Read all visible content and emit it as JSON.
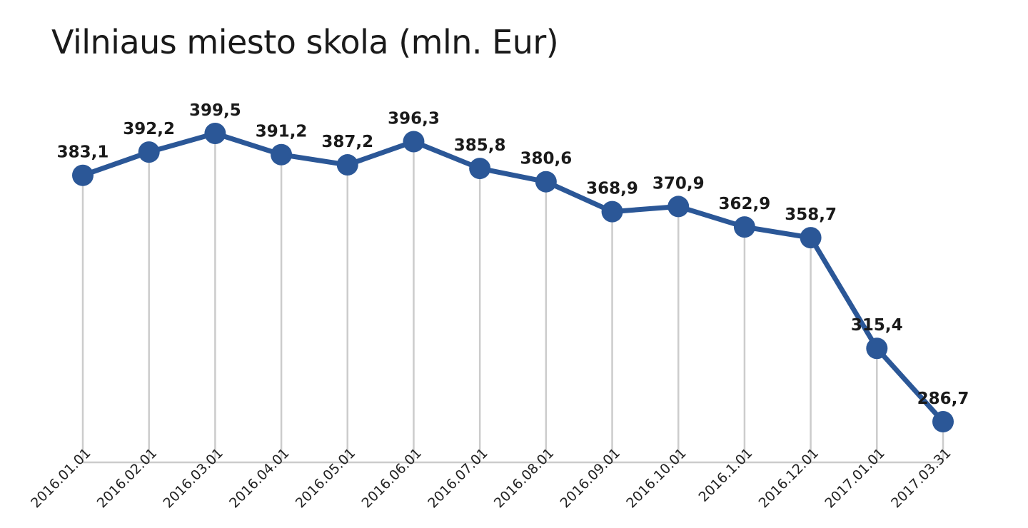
{
  "chart_data": {
    "type": "line",
    "title": "Vilniaus miesto skola (mln. Eur)",
    "xlabel": "",
    "ylabel": "",
    "categories": [
      "2016.01.01",
      "2016.02.01",
      "2016.03.01",
      "2016.04.01",
      "2016.05.01",
      "2016.06.01",
      "2016.07.01",
      "2016.08.01",
      "2016.09.01",
      "2016.10.01",
      "2016.1.01",
      "2016.12.01",
      "2017.01.01",
      "2017.03.31"
    ],
    "series": [
      {
        "values": [
          383.1,
          392.2,
          399.5,
          391.2,
          387.2,
          396.3,
          385.8,
          380.6,
          368.9,
          370.9,
          362.9,
          358.7,
          315.4,
          286.7
        ],
        "labels": [
          "383,1",
          "392,2",
          "399,5",
          "391,2",
          "387,2",
          "396,3",
          "385,8",
          "380,6",
          "368,9",
          "370,9",
          "362,9",
          "358,7",
          "315,4",
          "286,7"
        ]
      }
    ],
    "ylim": [
      280,
      400
    ],
    "grid": false,
    "colors": {
      "line": "#2b5797",
      "gridline": "#cccccc",
      "axis": "#cccccc"
    }
  }
}
